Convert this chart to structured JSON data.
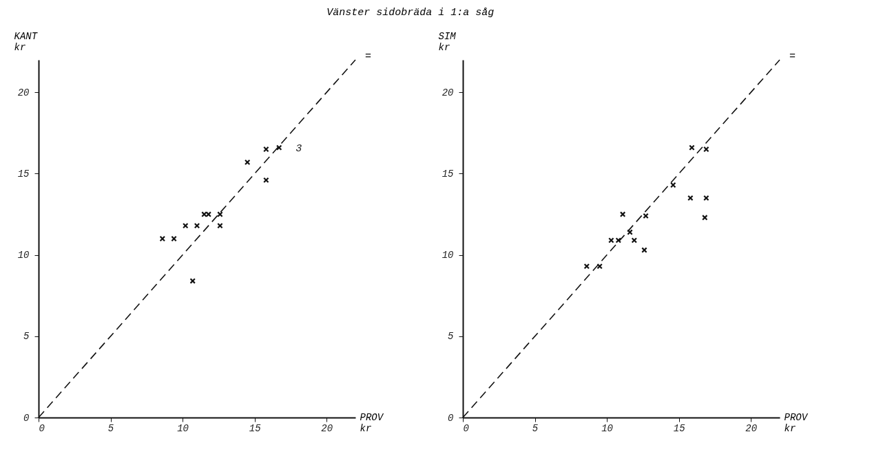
{
  "chart_data": [
    {
      "type": "scatter",
      "title": "Vänster sidobräda i 1:a såg",
      "xlabel": "PROV\nkr",
      "ylabel": "KANT\nkr",
      "xlim": [
        0,
        22
      ],
      "ylim": [
        0,
        22
      ],
      "xticks": [
        0,
        5,
        10,
        15,
        20
      ],
      "yticks": [
        0,
        5,
        10,
        15,
        20
      ],
      "series": [
        {
          "color": "#111111",
          "marker": "cross",
          "x": [
            8.6,
            9.4,
            10.2,
            11.0,
            11.5,
            11.8,
            12.6,
            12.6,
            10.7,
            14.5,
            15.8,
            15.8,
            16.7
          ],
          "values": [
            11.0,
            11.0,
            11.8,
            11.8,
            12.5,
            12.5,
            12.5,
            11.8,
            8.4,
            15.7,
            16.5,
            14.6,
            16.6
          ]
        },
        {
          "type": "line",
          "name": "=",
          "color": "#111111",
          "line_style": "dashed",
          "marker": "none",
          "x": [
            0,
            22
          ],
          "values": [
            0,
            22
          ]
        }
      ],
      "annotations": [
        {
          "text": "3",
          "x": 16.7,
          "y": 16.6
        }
      ]
    },
    {
      "type": "scatter",
      "xlabel": "PROV\nkr",
      "ylabel": "SIM\nkr",
      "xlim": [
        0,
        22
      ],
      "ylim": [
        0,
        22
      ],
      "xticks": [
        0,
        5,
        10,
        15,
        20
      ],
      "yticks": [
        0,
        5,
        10,
        15,
        20
      ],
      "series": [
        {
          "color": "#111111",
          "marker": "cross",
          "x": [
            8.6,
            9.5,
            10.3,
            10.8,
            11.1,
            11.6,
            11.9,
            12.7,
            12.6,
            14.6,
            15.9,
            16.9,
            15.8,
            16.9,
            16.8
          ],
          "values": [
            9.3,
            9.3,
            10.9,
            10.9,
            12.5,
            11.4,
            10.9,
            12.4,
            10.3,
            14.3,
            16.6,
            16.5,
            13.5,
            13.5,
            12.3
          ]
        },
        {
          "type": "line",
          "name": "=",
          "color": "#111111",
          "line_style": "dashed",
          "marker": "none",
          "x": [
            0,
            22
          ],
          "values": [
            0,
            22
          ]
        }
      ]
    }
  ]
}
